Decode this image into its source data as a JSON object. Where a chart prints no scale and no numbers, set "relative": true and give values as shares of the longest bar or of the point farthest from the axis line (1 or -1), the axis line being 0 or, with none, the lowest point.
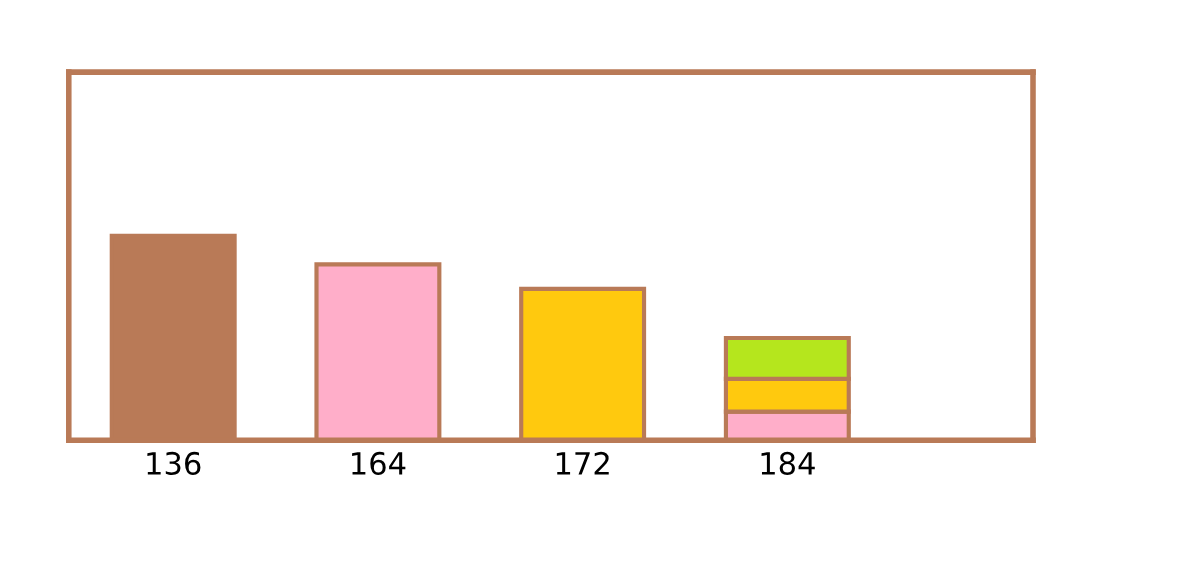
{
  "chart_data": {
    "type": "bar",
    "relative": true,
    "stacked": true,
    "categories": [
      "136",
      "164",
      "172",
      "184"
    ],
    "series": [
      {
        "color": "#b97a57",
        "values": [
          1,
          null,
          null,
          null
        ]
      },
      {
        "color": "#ffaec9",
        "values": [
          null,
          0.86,
          null,
          0.14
        ]
      },
      {
        "color": "#ffc90e",
        "values": [
          null,
          null,
          0.74,
          0.16
        ]
      },
      {
        "color": "#b5e61d",
        "values": [
          null,
          null,
          null,
          0.2
        ]
      }
    ],
    "grid": false,
    "legend": false
  }
}
